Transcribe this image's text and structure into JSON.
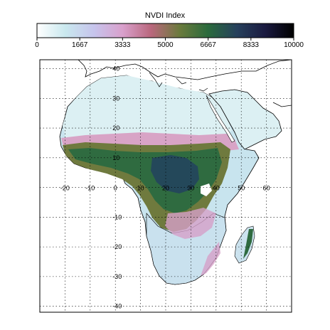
{
  "colorbar": {
    "title": "NVDI Index",
    "tick_labels": [
      "0",
      "1667",
      "3333",
      "5000",
      "6667",
      "8333",
      "10000"
    ],
    "range": [
      0,
      10000
    ],
    "colors": [
      "#ffffff",
      "#c9e8ee",
      "#c6c4ec",
      "#d9a0cc",
      "#b9677c",
      "#6a7a3c",
      "#2a6a3c",
      "#26405c",
      "#1a1a40",
      "#000000"
    ]
  },
  "map": {
    "region": "Africa",
    "lon_tick_labels": [
      "-20",
      "-10",
      "0",
      "10",
      "20",
      "30",
      "40",
      "50",
      "60"
    ],
    "lat_tick_labels": [
      "40",
      "30",
      "20",
      "10",
      "-10",
      "-20",
      "-30",
      "-40"
    ],
    "lon_range": [
      -30,
      70
    ],
    "lat_range": [
      -42,
      43
    ],
    "grid": true,
    "colors": {
      "desert": "#dcf0f3",
      "sahel": "#d9a6c8",
      "savanna": "#7a7a3c",
      "forest": "#2e6a40",
      "dense_forest": "#24495a",
      "south": "#c7e3ee",
      "coastline": "#000000"
    }
  }
}
